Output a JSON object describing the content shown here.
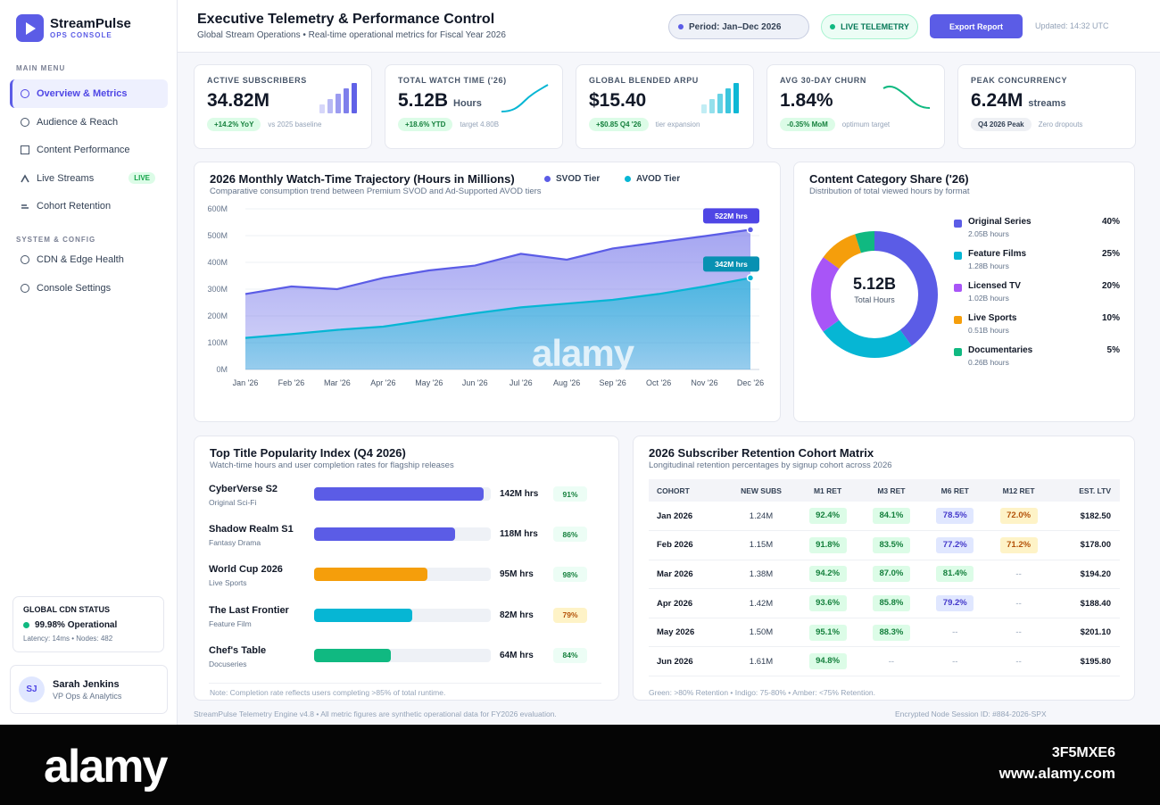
{
  "brand": {
    "name": "StreamPulse",
    "sub": "OPS CONSOLE"
  },
  "sidebar": {
    "main_heading": "MAIN MENU",
    "main_items": [
      {
        "label": "Overview & Metrics",
        "icon": "circle-icon",
        "active": true
      },
      {
        "label": "Audience & Reach",
        "icon": "circle-icon"
      },
      {
        "label": "Content Performance",
        "icon": "square-icon"
      },
      {
        "label": "Live Streams",
        "icon": "signal-icon",
        "badge": "LIVE"
      },
      {
        "label": "Cohort Retention",
        "icon": "lines-icon"
      }
    ],
    "system_heading": "SYSTEM & CONFIG",
    "system_items": [
      {
        "label": "CDN & Edge Health",
        "icon": "circle-icon"
      },
      {
        "label": "Console Settings",
        "icon": "circle-icon"
      }
    ],
    "cdn": {
      "title": "GLOBAL CDN STATUS",
      "status": "99.98% Operational",
      "meta": "Latency: 14ms • Nodes: 482"
    },
    "user": {
      "initials": "SJ",
      "name": "Sarah Jenkins",
      "role": "VP Ops & Analytics"
    }
  },
  "header": {
    "title": "Executive Telemetry & Performance Control",
    "subtitle": "Global Stream Operations • Real-time operational metrics for Fiscal Year 2026",
    "period": "Period: Jan–Dec 2026",
    "live": "LIVE TELEMETRY",
    "export": "Export Report",
    "updated": "Updated: 14:32 UTC"
  },
  "kpis": [
    {
      "label": "ACTIVE SUBSCRIBERS",
      "value": "34.82M",
      "unit": "",
      "pill": "+14.2% YoY",
      "note": "vs 2025 baseline",
      "spark": "bars",
      "color": "#5b5ce6"
    },
    {
      "label": "TOTAL WATCH TIME ('26)",
      "value": "5.12B",
      "unit": "Hours",
      "pill": "+18.6% YTD",
      "note": "target 4.80B",
      "spark": "line-up",
      "color": "#06b6d4"
    },
    {
      "label": "GLOBAL BLENDED ARPU",
      "value": "$15.40",
      "unit": "",
      "pill": "+$0.85 Q4 '26",
      "note": "tier expansion",
      "spark": "bars",
      "color": "#06b6d4"
    },
    {
      "label": "AVG 30-DAY CHURN",
      "value": "1.84%",
      "unit": "",
      "pill": "-0.35% MoM",
      "note": "optimum target",
      "spark": "line-down",
      "color": "#10b981"
    },
    {
      "label": "PEAK CONCURRENCY",
      "value": "6.24M",
      "unit": "streams",
      "pill": "Q4 2026 Peak",
      "note": "Zero dropouts",
      "spark": "none",
      "color": "#5b5ce6"
    }
  ],
  "trajectory": {
    "title": "2026 Monthly Watch-Time Trajectory (Hours in Millions)",
    "subtitle": "Comparative consumption trend between Premium SVOD and Ad-Supported AVOD tiers",
    "svod_tag": "522M hrs",
    "avod_tag": "342M hrs"
  },
  "donut": {
    "title": "Content Category Share ('26)",
    "subtitle": "Distribution of total viewed hours by format",
    "center_value": "5.12B",
    "center_label": "Total Hours",
    "items": [
      {
        "name": "Original Series",
        "hours": "2.05B hours",
        "pct": "40%",
        "value": 40,
        "color": "#5b5ce6"
      },
      {
        "name": "Feature Films",
        "hours": "1.28B hours",
        "pct": "25%",
        "value": 25,
        "color": "#06b6d4"
      },
      {
        "name": "Licensed TV",
        "hours": "1.02B hours",
        "pct": "20%",
        "value": 20,
        "color": "#a855f7"
      },
      {
        "name": "Live Sports",
        "hours": "0.51B hours",
        "pct": "10%",
        "value": 10,
        "color": "#f59e0b"
      },
      {
        "name": "Documentaries",
        "hours": "0.26B hours",
        "pct": "5%",
        "value": 5,
        "color": "#10b981"
      }
    ]
  },
  "top_titles": {
    "title": "Top Title Popularity Index (Q4 2026)",
    "subtitle": "Watch-time hours and user completion rates for flagship releases",
    "note": "Note: Completion rate reflects users completing >85% of total runtime.",
    "rows": [
      {
        "name": "CyberVerse S2",
        "genre": "Original Sci-Fi",
        "hours": "142M hrs",
        "value": 142,
        "rate": "91%",
        "rate_kind": "green",
        "color": "#5b5ce6"
      },
      {
        "name": "Shadow Realm S1",
        "genre": "Fantasy Drama",
        "hours": "118M hrs",
        "value": 118,
        "rate": "86%",
        "rate_kind": "green",
        "color": "#5b5ce6"
      },
      {
        "name": "World Cup 2026",
        "genre": "Live Sports",
        "hours": "95M hrs",
        "value": 95,
        "rate": "98%",
        "rate_kind": "green",
        "color": "#f59e0b"
      },
      {
        "name": "The Last Frontier",
        "genre": "Feature Film",
        "hours": "82M hrs",
        "value": 82,
        "rate": "79%",
        "rate_kind": "amber",
        "color": "#06b6d4"
      },
      {
        "name": "Chef's Table",
        "genre": "Docuseries",
        "hours": "64M hrs",
        "value": 64,
        "rate": "84%",
        "rate_kind": "green",
        "color": "#10b981"
      }
    ]
  },
  "cohort": {
    "title": "2026 Subscriber Retention Cohort Matrix",
    "subtitle": "Longitudinal retention percentages by signup cohort across 2026",
    "note": "Green: >80% Retention • Indigo: 75-80% • Amber: <75% Retention.",
    "headers": [
      "COHORT",
      "NEW SUBS",
      "M1 RET",
      "M3 RET",
      "M6 RET",
      "M12 RET",
      "EST. LTV"
    ],
    "rows": [
      [
        "Jan 2026",
        "1.24M",
        "92.4%",
        "84.1%",
        "78.5%",
        "72.0%",
        "$182.50"
      ],
      [
        "Feb 2026",
        "1.15M",
        "91.8%",
        "83.5%",
        "77.2%",
        "71.2%",
        "$178.00"
      ],
      [
        "Mar 2026",
        "1.38M",
        "94.2%",
        "87.0%",
        "81.4%",
        "--",
        "$194.20"
      ],
      [
        "Apr 2026",
        "1.42M",
        "93.6%",
        "85.8%",
        "79.2%",
        "--",
        "$188.40"
      ],
      [
        "May 2026",
        "1.50M",
        "95.1%",
        "88.3%",
        "--",
        "--",
        "$201.10"
      ],
      [
        "Jun 2026",
        "1.61M",
        "94.8%",
        "--",
        "--",
        "--",
        "$195.80"
      ]
    ]
  },
  "footer": {
    "left": "StreamPulse Telemetry Engine v4.8 • All metric figures are synthetic operational data for FY2026 evaluation.",
    "right": "Encrypted Node Session ID: #884-2026-SPX"
  },
  "stock": {
    "logo": "alamy",
    "image_id": "3F5MXE6",
    "url": "www.alamy.com",
    "watermark": "alamy"
  },
  "chart_data": {
    "type": "area",
    "title": "2026 Monthly Watch-Time Trajectory (Hours in Millions)",
    "categories": [
      "Jan '26",
      "Feb '26",
      "Mar '26",
      "Apr '26",
      "May '26",
      "Jun '26",
      "Jul '26",
      "Aug '26",
      "Sep '26",
      "Oct '26",
      "Nov '26",
      "Dec '26"
    ],
    "series": [
      {
        "name": "SVOD Tier",
        "color": "#5b5ce6",
        "values": [
          282,
          310,
          300,
          342,
          370,
          388,
          432,
          410,
          452,
          475,
          498,
          522
        ]
      },
      {
        "name": "AVOD Tier",
        "color": "#06b6d4",
        "values": [
          118,
          132,
          148,
          160,
          185,
          210,
          232,
          246,
          260,
          282,
          310,
          342
        ]
      }
    ],
    "y_ticks": [
      "0M",
      "100M",
      "200M",
      "300M",
      "400M",
      "500M",
      "600M"
    ],
    "ylim": [
      0,
      600
    ],
    "grid": true,
    "legend": "top-right"
  }
}
